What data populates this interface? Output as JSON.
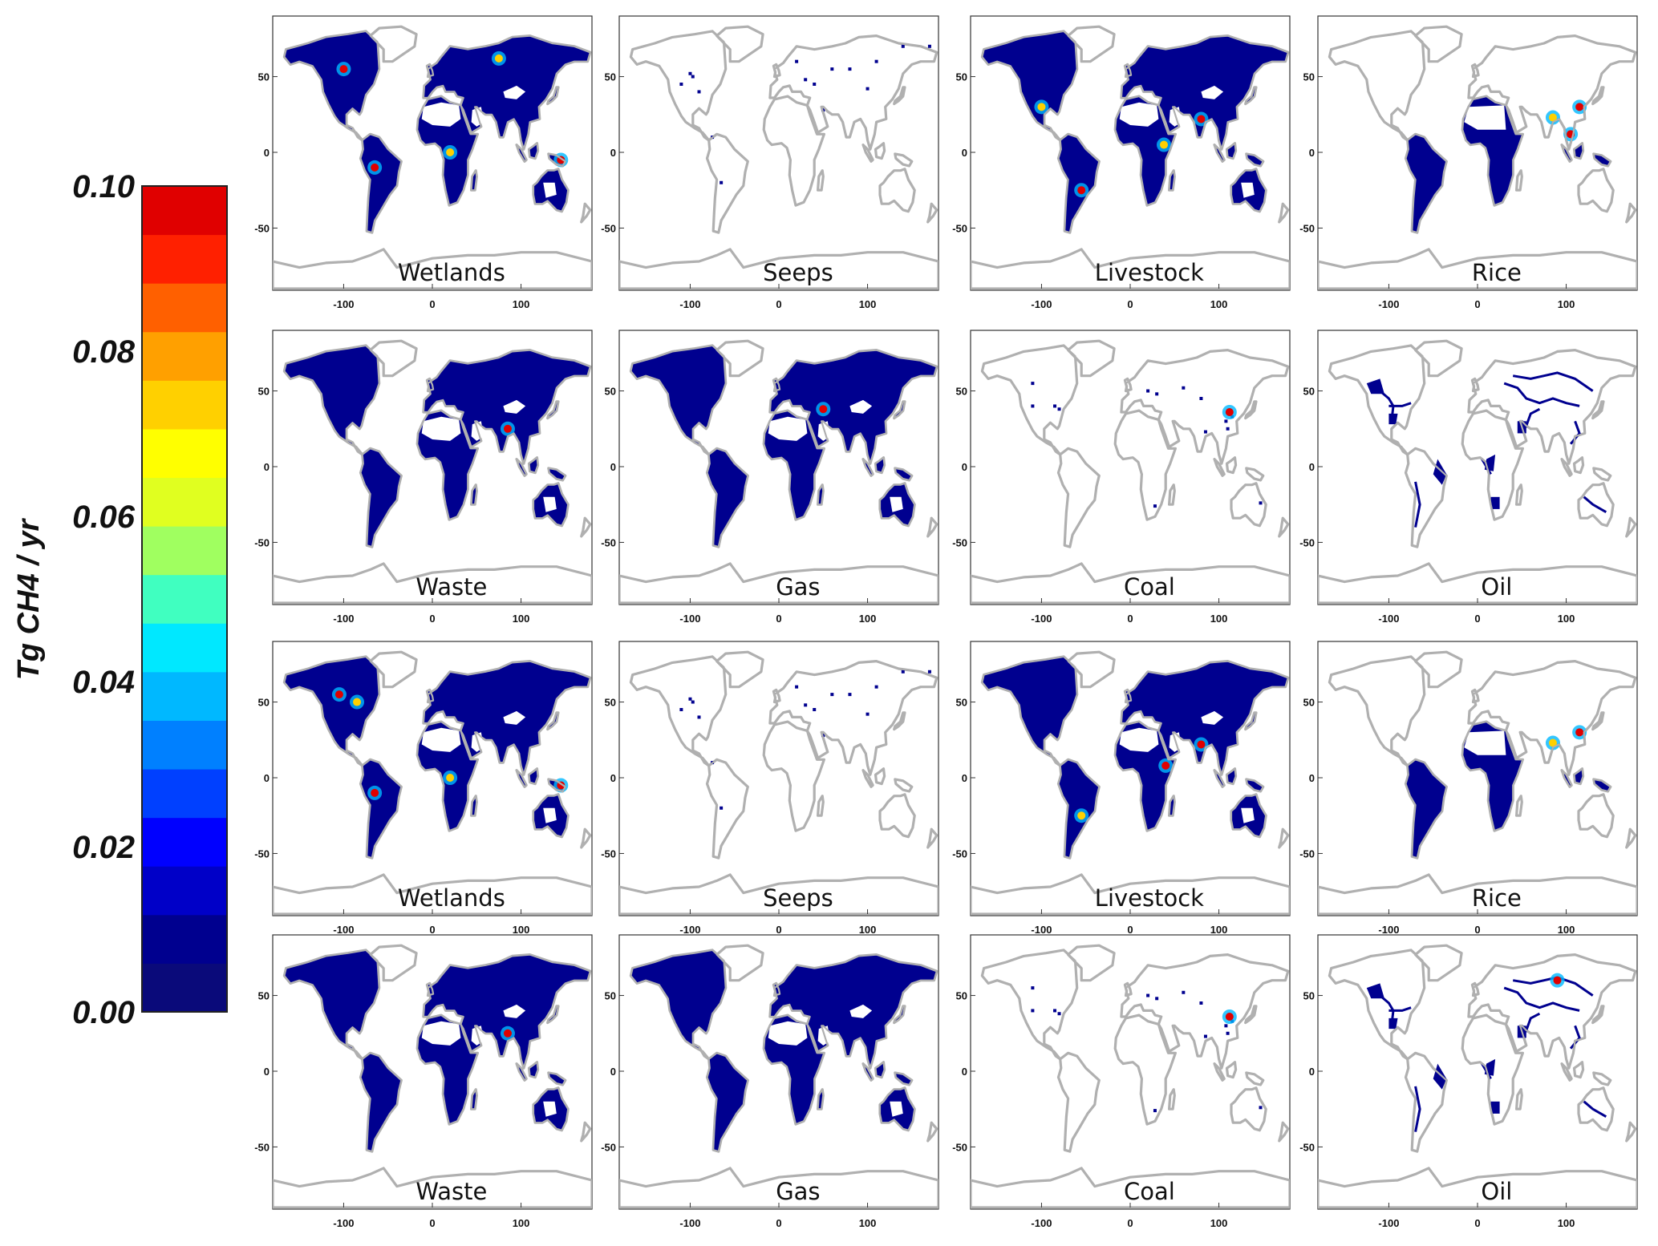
{
  "colorbar": {
    "unit_label": "Tg CH4 / yr",
    "ticks": [
      "0.10",
      "0.08",
      "0.06",
      "0.04",
      "0.02",
      "0.00"
    ],
    "range": [
      0.0,
      0.1
    ],
    "colors": [
      "#0a0a7a",
      "#00008f",
      "#0000c8",
      "#0000ff",
      "#0040ff",
      "#0080ff",
      "#00b8ff",
      "#00e8ff",
      "#40ffc0",
      "#a0ff60",
      "#e0ff20",
      "#ffff00",
      "#ffd000",
      "#ffa000",
      "#ff6000",
      "#ff2000",
      "#e00000"
    ]
  },
  "chart_data": {
    "type": "heatmap",
    "layout": {
      "rows": 4,
      "cols": 4
    },
    "x_ticks": [
      "-100",
      "0",
      "100"
    ],
    "x_tick_values": [
      -100,
      0,
      100
    ],
    "y_ticks": [
      "50",
      "0",
      "-50"
    ],
    "y_tick_values": [
      50,
      0,
      -50
    ],
    "xlim": [
      -180,
      180
    ],
    "ylim": [
      -90,
      90
    ],
    "land_color": "#b0b0b0",
    "panels": [
      {
        "title": "Wetlands",
        "coverage": "wide",
        "hotspots": [
          [
            -65,
            -10
          ],
          [
            20,
            0
          ],
          [
            -100,
            55
          ],
          [
            75,
            62
          ],
          [
            145,
            -5
          ]
        ]
      },
      {
        "title": "Seeps",
        "coverage": "sparse",
        "hotspots": []
      },
      {
        "title": "Livestock",
        "coverage": "wide",
        "hotspots": [
          [
            80,
            22
          ],
          [
            38,
            5
          ],
          [
            -55,
            -25
          ],
          [
            -100,
            30
          ]
        ]
      },
      {
        "title": "Rice",
        "coverage": "tropics",
        "hotspots": [
          [
            115,
            30
          ],
          [
            85,
            23
          ],
          [
            105,
            12
          ]
        ]
      },
      {
        "title": "Waste",
        "coverage": "wide",
        "hotspots": [
          [
            85,
            25
          ]
        ]
      },
      {
        "title": "Gas",
        "coverage": "wide",
        "hotspots": [
          [
            50,
            38
          ]
        ]
      },
      {
        "title": "Coal",
        "coverage": "sparse",
        "hotspots": [
          [
            112,
            36
          ]
        ]
      },
      {
        "title": "Oil",
        "coverage": "network",
        "hotspots": []
      },
      {
        "title": "Wetlands",
        "coverage": "wide",
        "hotspots": [
          [
            -65,
            -10
          ],
          [
            20,
            0
          ],
          [
            -105,
            55
          ],
          [
            -85,
            50
          ],
          [
            145,
            -5
          ]
        ]
      },
      {
        "title": "Seeps",
        "coverage": "sparse",
        "hotspots": []
      },
      {
        "title": "Livestock",
        "coverage": "wide",
        "hotspots": [
          [
            80,
            22
          ],
          [
            -55,
            -25
          ],
          [
            40,
            8
          ]
        ]
      },
      {
        "title": "Rice",
        "coverage": "tropics",
        "hotspots": [
          [
            115,
            30
          ],
          [
            85,
            23
          ]
        ]
      },
      {
        "title": "Waste",
        "coverage": "wide",
        "hotspots": [
          [
            85,
            25
          ]
        ]
      },
      {
        "title": "Gas",
        "coverage": "wide",
        "hotspots": []
      },
      {
        "title": "Coal",
        "coverage": "sparse",
        "hotspots": [
          [
            112,
            36
          ]
        ]
      },
      {
        "title": "Oil",
        "coverage": "network",
        "hotspots": [
          [
            90,
            60
          ]
        ]
      }
    ]
  }
}
